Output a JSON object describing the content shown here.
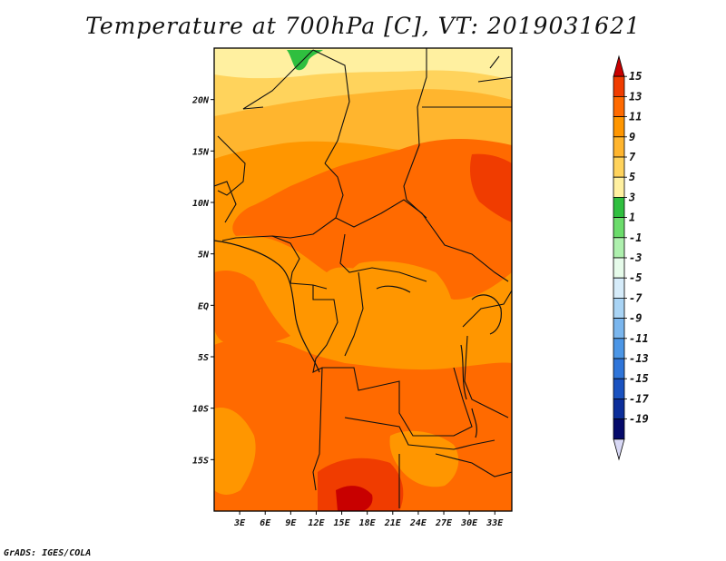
{
  "title": "Temperature at 700hPa [C], VT: 2019031621",
  "credit": "GrADS: IGES/COLA",
  "map": {
    "lat_labels": [
      {
        "label": "20N",
        "value": 20
      },
      {
        "label": "15N",
        "value": 15
      },
      {
        "label": "10N",
        "value": 10
      },
      {
        "label": "5N",
        "value": 5
      },
      {
        "label": "EQ",
        "value": 0
      },
      {
        "label": "5S",
        "value": -5
      },
      {
        "label": "10S",
        "value": -10
      },
      {
        "label": "15S",
        "value": -15
      }
    ],
    "lon_labels": [
      {
        "label": "3E",
        "value": 3
      },
      {
        "label": "6E",
        "value": 6
      },
      {
        "label": "9E",
        "value": 9
      },
      {
        "label": "12E",
        "value": 12
      },
      {
        "label": "15E",
        "value": 15
      },
      {
        "label": "18E",
        "value": 18
      },
      {
        "label": "21E",
        "value": 21
      },
      {
        "label": "24E",
        "value": 24
      },
      {
        "label": "27E",
        "value": 27
      },
      {
        "label": "30E",
        "value": 30
      },
      {
        "label": "33E",
        "value": 33
      }
    ],
    "lon_range": [
      0,
      35
    ],
    "lat_range": [
      -20,
      25
    ]
  },
  "colorbar": {
    "levels": [
      "15",
      "13",
      "11",
      "9",
      "7",
      "5",
      "3",
      "1",
      "-1",
      "-3",
      "-5",
      "-7",
      "-9",
      "-11",
      "-13",
      "-15",
      "-17",
      "-19"
    ],
    "colors": [
      "#c80000",
      "#f03c00",
      "#ff6a00",
      "#ff9600",
      "#ffb52e",
      "#ffd35c",
      "#fff0a0",
      "#2fbf3f",
      "#6bdc6b",
      "#aef0ae",
      "#e6fbea",
      "#d6ecfa",
      "#a9d4f5",
      "#7ab6ee",
      "#4c96e6",
      "#2f75d9",
      "#1a52c0",
      "#0c2e9a",
      "#050a6a",
      "#d8d8f5"
    ]
  }
}
